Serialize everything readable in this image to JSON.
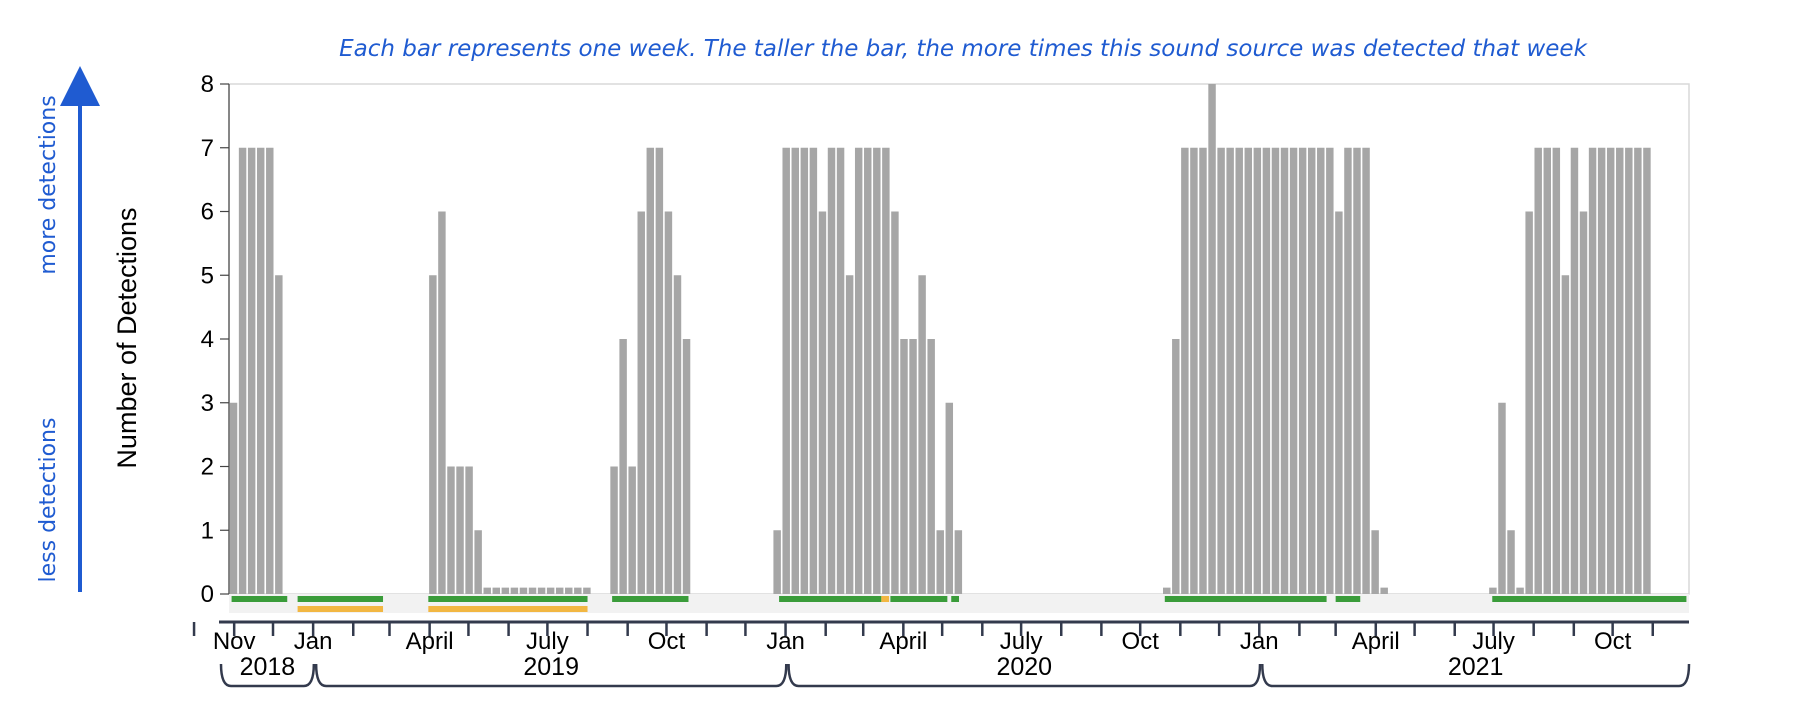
{
  "chart_data": {
    "type": "bar",
    "title": "Each bar represents one week. The taller the bar, the more times this sound source was detected that week",
    "ylabel": "Number of Detections",
    "side_annotations": {
      "top": "more detections",
      "bottom": "less detections"
    },
    "ylim": [
      0,
      8
    ],
    "yticks": [
      0,
      1,
      2,
      3,
      4,
      5,
      6,
      7,
      8
    ],
    "x_range": [
      "2018-10-28",
      "2021-11-29"
    ],
    "month_ticks": [
      {
        "label": "Nov",
        "date": "2018-11-01"
      },
      {
        "label": "Jan",
        "date": "2019-01-01"
      },
      {
        "label": "April",
        "date": "2019-04-01"
      },
      {
        "label": "July",
        "date": "2019-07-01"
      },
      {
        "label": "Oct",
        "date": "2019-10-01"
      },
      {
        "label": "Jan",
        "date": "2020-01-01"
      },
      {
        "label": "April",
        "date": "2020-04-01"
      },
      {
        "label": "July",
        "date": "2020-07-01"
      },
      {
        "label": "Oct",
        "date": "2020-10-01"
      },
      {
        "label": "Jan",
        "date": "2021-01-01"
      },
      {
        "label": "April",
        "date": "2021-04-01"
      },
      {
        "label": "July",
        "date": "2021-07-01"
      },
      {
        "label": "Oct",
        "date": "2021-10-01"
      }
    ],
    "year_groups": [
      {
        "label": "2018",
        "start": "2018-10-28",
        "end": "2018-12-31"
      },
      {
        "label": "2019",
        "start": "2019-01-01",
        "end": "2019-12-31"
      },
      {
        "label": "2020",
        "start": "2020-01-01",
        "end": "2020-12-31"
      },
      {
        "label": "2021",
        "start": "2021-01-01",
        "end": "2021-11-29"
      }
    ],
    "series": [
      {
        "week_starts": [
          "2018-10-28",
          "2018-11-04",
          "2018-11-11",
          "2018-11-18",
          "2018-11-25",
          "2018-12-02",
          "2019-03-31",
          "2019-04-07",
          "2019-04-14",
          "2019-04-21",
          "2019-04-28",
          "2019-05-05",
          "2019-05-12",
          "2019-05-19",
          "2019-05-26",
          "2019-06-02",
          "2019-06-09",
          "2019-06-16",
          "2019-06-23",
          "2019-06-30",
          "2019-07-07",
          "2019-07-14",
          "2019-07-21",
          "2019-07-28",
          "2019-08-18",
          "2019-08-25",
          "2019-09-01",
          "2019-09-08",
          "2019-09-15",
          "2019-09-22",
          "2019-09-29",
          "2019-10-06",
          "2019-10-13",
          "2019-12-22",
          "2019-12-29",
          "2020-01-05",
          "2020-01-12",
          "2020-01-19",
          "2020-01-26",
          "2020-02-02",
          "2020-02-09",
          "2020-02-16",
          "2020-02-23",
          "2020-03-01",
          "2020-03-08",
          "2020-03-15",
          "2020-03-22",
          "2020-03-29",
          "2020-04-05",
          "2020-04-12",
          "2020-04-19",
          "2020-04-26",
          "2020-05-03",
          "2020-05-10",
          "2020-10-18",
          "2020-10-25",
          "2020-11-01",
          "2020-11-08",
          "2020-11-15",
          "2020-11-22",
          "2020-11-29",
          "2020-12-06",
          "2020-12-13",
          "2020-12-20",
          "2020-12-27",
          "2021-01-03",
          "2021-01-10",
          "2021-01-17",
          "2021-01-24",
          "2021-01-31",
          "2021-02-07",
          "2021-02-14",
          "2021-02-21",
          "2021-02-28",
          "2021-03-07",
          "2021-03-14",
          "2021-03-21",
          "2021-03-28",
          "2021-04-04",
          "2021-06-27",
          "2021-07-04",
          "2021-07-11",
          "2021-07-18",
          "2021-07-25",
          "2021-08-01",
          "2021-08-08",
          "2021-08-15",
          "2021-08-22",
          "2021-08-29",
          "2021-09-05",
          "2021-09-12",
          "2021-09-19",
          "2021-09-26",
          "2021-10-03",
          "2021-10-10",
          "2021-10-17",
          "2021-10-24"
        ],
        "values": [
          3,
          7,
          7,
          7,
          7,
          5,
          5,
          6,
          2,
          2,
          2,
          1,
          0.1,
          0.1,
          0.1,
          0.1,
          0.1,
          0.1,
          0.1,
          0.1,
          0.1,
          0.1,
          0.1,
          0.1,
          2,
          4,
          2,
          6,
          7,
          7,
          6,
          5,
          4,
          1,
          7,
          7,
          7,
          7,
          6,
          7,
          7,
          5,
          7,
          7,
          7,
          7,
          6,
          4,
          4,
          5,
          4,
          1,
          3,
          1,
          0.1,
          4,
          7,
          7,
          7,
          8,
          7,
          7,
          7,
          7,
          7,
          7,
          7,
          7,
          7,
          7,
          7,
          7,
          7,
          6,
          7,
          7,
          7,
          1,
          0.1,
          0.1,
          3,
          1,
          0.1,
          6,
          7,
          7,
          7,
          5,
          7,
          6,
          7,
          7,
          7,
          7,
          7,
          7,
          7,
          7,
          7,
          7,
          6
        ]
      }
    ],
    "effort_bars": [
      {
        "row": 1,
        "color": "#3a9c3a",
        "start": "2018-10-30",
        "end": "2018-12-12"
      },
      {
        "row": 1,
        "color": "#3a9c3a",
        "start": "2018-12-20",
        "end": "2019-02-24"
      },
      {
        "row": 1,
        "color": "#3a9c3a",
        "start": "2019-03-31",
        "end": "2019-08-01"
      },
      {
        "row": 1,
        "color": "#3a9c3a",
        "start": "2019-08-20",
        "end": "2019-10-18"
      },
      {
        "row": 1,
        "color": "#3a9c3a",
        "start": "2019-12-27",
        "end": "2020-03-15"
      },
      {
        "row": 1,
        "color": "#f2b742",
        "start": "2020-03-15",
        "end": "2020-03-21"
      },
      {
        "row": 1,
        "color": "#3a9c3a",
        "start": "2020-03-22",
        "end": "2020-05-05"
      },
      {
        "row": 1,
        "color": "#3a9c3a",
        "start": "2020-05-08",
        "end": "2020-05-14"
      },
      {
        "row": 1,
        "color": "#3a9c3a",
        "start": "2020-10-20",
        "end": "2021-02-22"
      },
      {
        "row": 1,
        "color": "#3a9c3a",
        "start": "2021-03-01",
        "end": "2021-03-20"
      },
      {
        "row": 1,
        "color": "#3a9c3a",
        "start": "2021-06-30",
        "end": "2021-11-27"
      },
      {
        "row": 2,
        "color": "#f2b742",
        "start": "2018-12-20",
        "end": "2019-02-24"
      },
      {
        "row": 2,
        "color": "#f2b742",
        "start": "2019-03-31",
        "end": "2019-08-01"
      }
    ],
    "bar_color": "#a6a6a6",
    "accent_color": "#1f5bd1",
    "grid": false
  }
}
